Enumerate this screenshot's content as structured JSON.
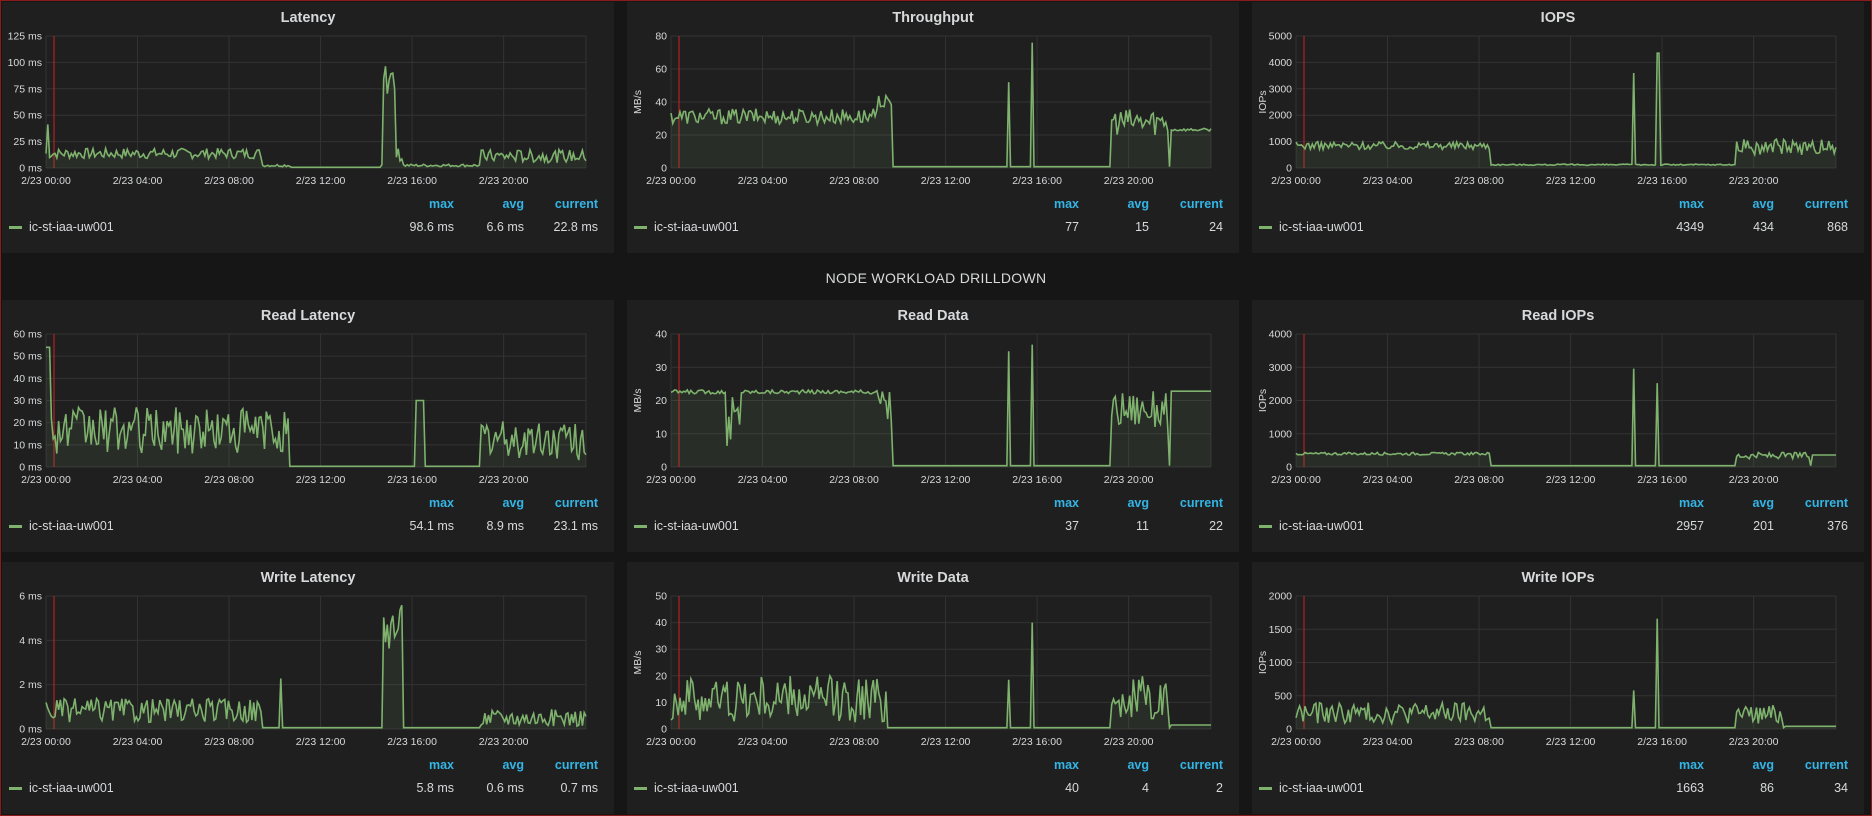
{
  "row_title": "NODE WORKLOAD DRILLDOWN",
  "legend_headers": {
    "max": "max",
    "avg": "avg",
    "current": "current"
  },
  "colors": {
    "series": "#7eb26d",
    "grid": "#333333",
    "marker": "#cc2222",
    "header": "#33b5e5"
  },
  "panels": [
    {
      "title": "Latency",
      "ylabel": "",
      "series": "ic-st-iaa-uw001",
      "max": "98.6 ms",
      "avg": "6.6 ms",
      "current": "22.8 ms",
      "yticks": [
        "0 ms",
        "25 ms",
        "50 ms",
        "75 ms",
        "100 ms",
        "125 ms"
      ],
      "ymax": 125,
      "xticks": [
        "2/23 00:00",
        "2/23 04:00",
        "2/23 08:00",
        "2/23 12:00",
        "2/23 16:00",
        "2/23 20:00"
      ]
    },
    {
      "title": "Throughput",
      "ylabel": "MB/s",
      "series": "ic-st-iaa-uw001",
      "max": "77",
      "avg": "15",
      "current": "24",
      "yticks": [
        "0",
        "20",
        "40",
        "60",
        "80"
      ],
      "ymax": 80,
      "xticks": [
        "2/23 00:00",
        "2/23 04:00",
        "2/23 08:00",
        "2/23 12:00",
        "2/23 16:00",
        "2/23 20:00"
      ]
    },
    {
      "title": "IOPS",
      "ylabel": "IOPs",
      "series": "ic-st-iaa-uw001",
      "max": "4349",
      "avg": "434",
      "current": "868",
      "yticks": [
        "0",
        "1000",
        "2000",
        "3000",
        "4000",
        "5000"
      ],
      "ymax": 5000,
      "xticks": [
        "2/23 00:00",
        "2/23 04:00",
        "2/23 08:00",
        "2/23 12:00",
        "2/23 16:00",
        "2/23 20:00"
      ]
    },
    {
      "title": "Read Latency",
      "ylabel": "",
      "series": "ic-st-iaa-uw001",
      "max": "54.1 ms",
      "avg": "8.9 ms",
      "current": "23.1 ms",
      "yticks": [
        "0 ms",
        "10 ms",
        "20 ms",
        "30 ms",
        "40 ms",
        "50 ms",
        "60 ms"
      ],
      "ymax": 60,
      "xticks": [
        "2/23 00:00",
        "2/23 04:00",
        "2/23 08:00",
        "2/23 12:00",
        "2/23 16:00",
        "2/23 20:00"
      ]
    },
    {
      "title": "Read Data",
      "ylabel": "MB/s",
      "series": "ic-st-iaa-uw001",
      "max": "37",
      "avg": "11",
      "current": "22",
      "yticks": [
        "0",
        "10",
        "20",
        "30",
        "40"
      ],
      "ymax": 40,
      "xticks": [
        "2/23 00:00",
        "2/23 04:00",
        "2/23 08:00",
        "2/23 12:00",
        "2/23 16:00",
        "2/23 20:00"
      ]
    },
    {
      "title": "Read IOPs",
      "ylabel": "IOPs",
      "series": "ic-st-iaa-uw001",
      "max": "2957",
      "avg": "201",
      "current": "376",
      "yticks": [
        "0",
        "1000",
        "2000",
        "3000",
        "4000"
      ],
      "ymax": 4000,
      "xticks": [
        "2/23 00:00",
        "2/23 04:00",
        "2/23 08:00",
        "2/23 12:00",
        "2/23 16:00",
        "2/23 20:00"
      ]
    },
    {
      "title": "Write Latency",
      "ylabel": "",
      "series": "ic-st-iaa-uw001",
      "max": "5.8 ms",
      "avg": "0.6 ms",
      "current": "0.7 ms",
      "yticks": [
        "0 ms",
        "2 ms",
        "4 ms",
        "6 ms"
      ],
      "ymax": 6,
      "xticks": [
        "2/23 00:00",
        "2/23 04:00",
        "2/23 08:00",
        "2/23 12:00",
        "2/23 16:00",
        "2/23 20:00"
      ]
    },
    {
      "title": "Write Data",
      "ylabel": "MB/s",
      "series": "ic-st-iaa-uw001",
      "max": "40",
      "avg": "4",
      "current": "2",
      "yticks": [
        "0",
        "10",
        "20",
        "30",
        "40",
        "50"
      ],
      "ymax": 50,
      "xticks": [
        "2/23 00:00",
        "2/23 04:00",
        "2/23 08:00",
        "2/23 12:00",
        "2/23 16:00",
        "2/23 20:00"
      ]
    },
    {
      "title": "Write IOPs",
      "ylabel": "IOPs",
      "series": "ic-st-iaa-uw001",
      "max": "1663",
      "avg": "86",
      "current": "34",
      "yticks": [
        "0",
        "500",
        "1000",
        "1500",
        "2000"
      ],
      "ymax": 2000,
      "xticks": [
        "2/23 00:00",
        "2/23 04:00",
        "2/23 08:00",
        "2/23 12:00",
        "2/23 16:00",
        "2/23 20:00"
      ]
    }
  ]
}
